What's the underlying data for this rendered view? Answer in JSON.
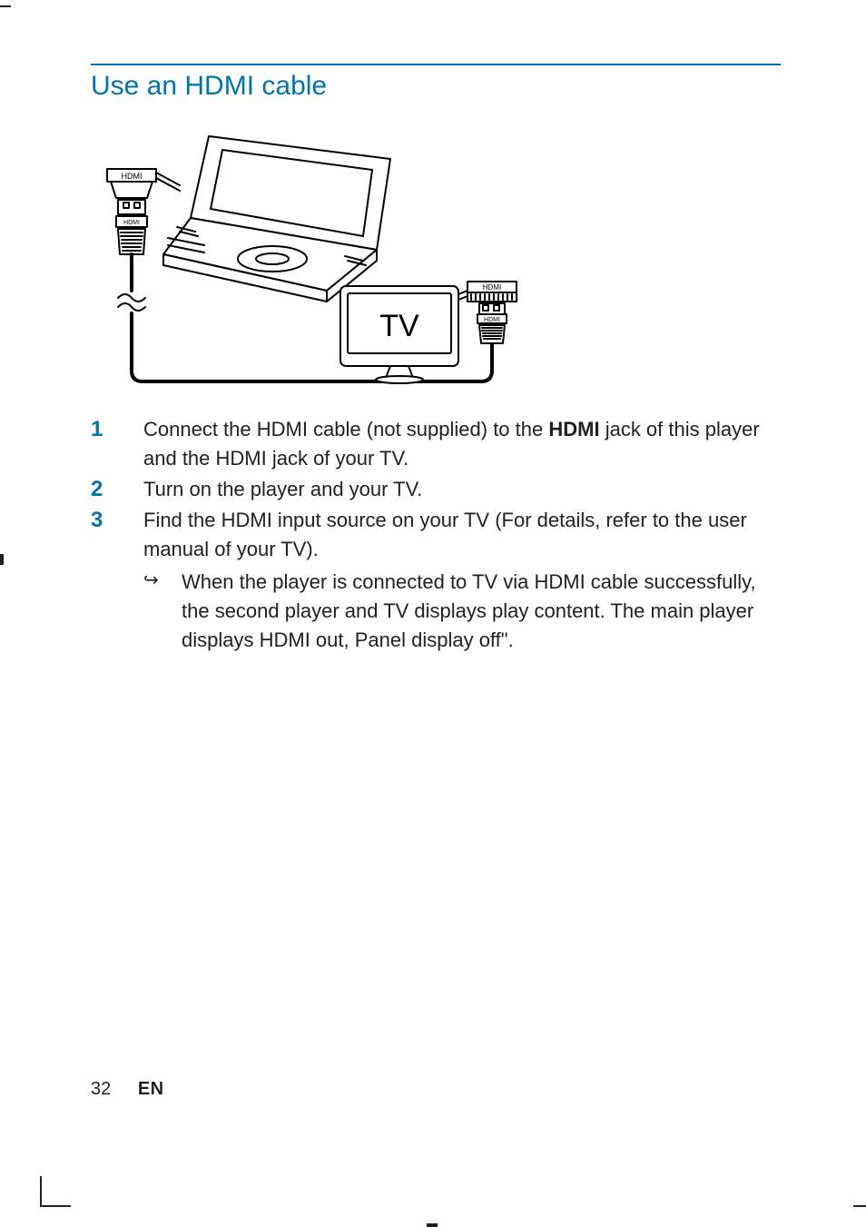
{
  "colors": {
    "accent": "#0073b0",
    "text": "#231f20",
    "rule": "#0073b0",
    "stroke": "#000000",
    "white": "#ffffff"
  },
  "heading": "Use an HDMI cable",
  "diagram": {
    "tv_label": "TV",
    "hdmi_label_small": "HDMI",
    "tv_label_fontsize": 36,
    "stroke_width": 2
  },
  "steps": [
    {
      "num": "1",
      "parts": [
        {
          "t": "Connect the HDMI cable (not supplied) to the ",
          "b": false
        },
        {
          "t": "HDMI",
          "b": true
        },
        {
          "t": " jack of this player and the HDMI jack of your TV.",
          "b": false
        }
      ]
    },
    {
      "num": "2",
      "parts": [
        {
          "t": "Turn on the player and your TV.",
          "b": false
        }
      ]
    },
    {
      "num": "3",
      "parts": [
        {
          "t": "Find the HDMI input source on your TV (For details, refer to the user manual of your TV).",
          "b": false
        }
      ],
      "sub": {
        "icon": "↪",
        "text": "When the player is connected to TV via HDMI cable successfully, the second player and TV displays play content. The main player displays HDMI out, Panel display off\"."
      }
    }
  ],
  "footer": {
    "page": "32",
    "lang": "EN"
  }
}
